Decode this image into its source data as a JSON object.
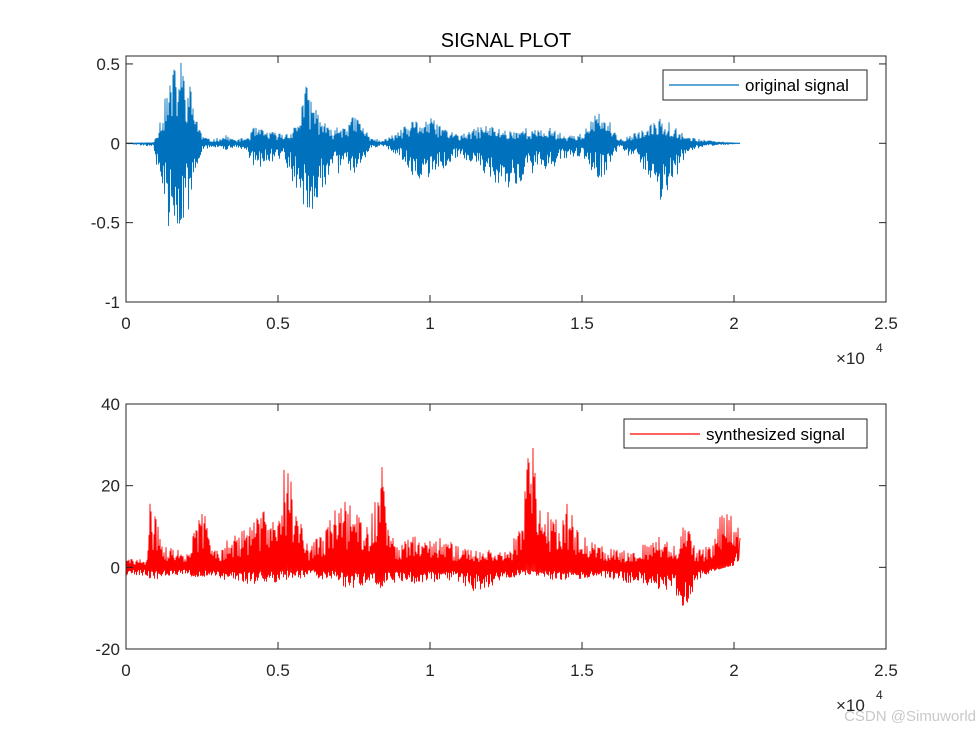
{
  "watermark": "CSDN @Simuworld",
  "chart_data": [
    {
      "type": "line",
      "title": "SIGNAL PLOT",
      "xlim": [
        0,
        25000
      ],
      "ylim": [
        -1,
        0.55
      ],
      "xticks": [
        0,
        5000,
        10000,
        15000,
        20000,
        25000
      ],
      "xtick_labels": [
        "0",
        "0.5",
        "1",
        "1.5",
        "2",
        "2.5"
      ],
      "yticks": [
        -1,
        -0.5,
        0,
        0.5
      ],
      "ytick_labels": [
        "-1",
        "-0.5",
        "0",
        "0.5"
      ],
      "x_exponent": {
        "base": "×10",
        "power": "4"
      },
      "legend": {
        "position": "top-right"
      },
      "color": "#0072BD",
      "series": [
        {
          "name": "original signal",
          "x": [
            0,
            900,
            1200,
            1500,
            1800,
            2100,
            2500,
            2800,
            3300,
            3600,
            4000,
            4200,
            4600,
            5200,
            5600,
            5900,
            6300,
            6700,
            7200,
            7600,
            8000,
            8400,
            9000,
            9500,
            10000,
            10500,
            11000,
            11800,
            12200,
            12600,
            13100,
            13600,
            14000,
            14400,
            15000,
            15500,
            15800,
            16200,
            17200,
            17600,
            18000,
            18500,
            19000,
            19500,
            20200
          ],
          "upper": [
            0.002,
            0.005,
            0.22,
            0.45,
            0.55,
            0.38,
            0.05,
            0.02,
            0.05,
            0.02,
            0.04,
            0.1,
            0.08,
            0.06,
            0.12,
            0.38,
            0.22,
            0.08,
            0.14,
            0.18,
            0.05,
            0.01,
            0.08,
            0.15,
            0.16,
            0.1,
            0.05,
            0.12,
            0.1,
            0.08,
            0.1,
            0.08,
            0.1,
            0.05,
            0.06,
            0.2,
            0.18,
            0.02,
            0.1,
            0.2,
            0.12,
            0.04,
            0.02,
            0.01,
            0.002
          ],
          "lower": [
            -0.002,
            -0.02,
            -0.35,
            -0.62,
            -0.68,
            -0.4,
            -0.05,
            -0.02,
            -0.05,
            -0.02,
            -0.05,
            -0.18,
            -0.12,
            -0.1,
            -0.3,
            -0.45,
            -0.4,
            -0.2,
            -0.18,
            -0.2,
            -0.04,
            -0.01,
            -0.08,
            -0.22,
            -0.24,
            -0.15,
            -0.08,
            -0.2,
            -0.28,
            -0.3,
            -0.25,
            -0.14,
            -0.18,
            -0.1,
            -0.08,
            -0.22,
            -0.22,
            -0.02,
            -0.2,
            -0.38,
            -0.25,
            -0.05,
            -0.02,
            -0.01,
            -0.002
          ]
        }
      ]
    },
    {
      "type": "line",
      "title": "",
      "xlim": [
        0,
        25000
      ],
      "ylim": [
        -20,
        40
      ],
      "xticks": [
        0,
        5000,
        10000,
        15000,
        20000,
        25000
      ],
      "xtick_labels": [
        "0",
        "0.5",
        "1",
        "1.5",
        "2",
        "2.5"
      ],
      "yticks": [
        -20,
        0,
        20,
        40
      ],
      "ytick_labels": [
        "-20",
        "0",
        "20",
        "40"
      ],
      "x_exponent": {
        "base": "×10",
        "power": "4"
      },
      "legend": {
        "position": "top-right"
      },
      "color": "#FF0000",
      "series": [
        {
          "name": "synthesized signal",
          "x": [
            0,
            700,
            800,
            1000,
            1300,
            2000,
            2600,
            2800,
            3200,
            3600,
            4000,
            4500,
            5000,
            5300,
            5600,
            6000,
            6500,
            6900,
            7200,
            7600,
            8000,
            8400,
            8600,
            9000,
            9500,
            10000,
            10500,
            11000,
            11500,
            12000,
            12500,
            13000,
            13300,
            13600,
            14000,
            14500,
            15000,
            15500,
            16000,
            16500,
            17000,
            17500,
            18000,
            18400,
            18800,
            19300,
            19700,
            20000,
            20200
          ],
          "upper": [
            2,
            2,
            18,
            12,
            5,
            4,
            16,
            5,
            6,
            8,
            10,
            14,
            22,
            28,
            14,
            6,
            8,
            16,
            17,
            14,
            10,
            28,
            10,
            6,
            8,
            8,
            7,
            5,
            4,
            5,
            4,
            10,
            34,
            18,
            14,
            16,
            8,
            6,
            5,
            4,
            6,
            8,
            5,
            12,
            4,
            6,
            18,
            12,
            11
          ],
          "lower": [
            -2,
            -2,
            -3,
            -3,
            -2,
            -2,
            -3,
            -2,
            -3,
            -3,
            -4,
            -4,
            -4,
            -3,
            -3,
            -2,
            -3,
            -3,
            -5,
            -5,
            -4,
            -5,
            -4,
            -4,
            -4,
            -4,
            -3,
            -4,
            -6,
            -5,
            -3,
            -2,
            -2,
            -2,
            -3,
            -3,
            -3,
            -2,
            -3,
            -4,
            -4,
            -6,
            -6,
            -11,
            -3,
            -1,
            0,
            2,
            6
          ]
        }
      ]
    }
  ]
}
